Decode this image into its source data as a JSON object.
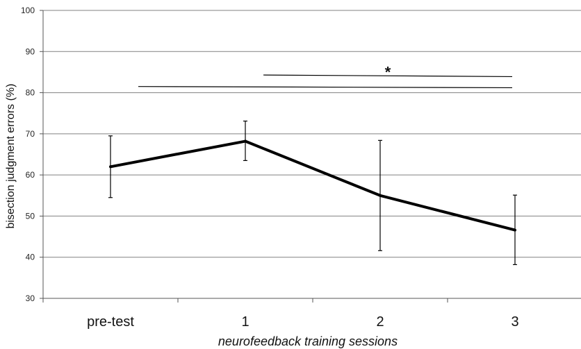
{
  "chart_data": {
    "type": "line",
    "categories": [
      "pre-test",
      "1",
      "2",
      "3"
    ],
    "series": [
      {
        "values": [
          62,
          68.2,
          55,
          46.6
        ],
        "error_low": [
          54.5,
          63.5,
          41.6,
          38.2
        ],
        "error_high": [
          69.5,
          73.1,
          68.4,
          55.1
        ]
      }
    ],
    "xlabel": "neurofeedback training sessions",
    "ylabel": "bisection judgment errors (%)",
    "ylim": [
      30,
      100
    ],
    "yticks": [
      30,
      40,
      50,
      60,
      70,
      80,
      90,
      100
    ],
    "grid": true,
    "significance": [
      {
        "from": "1",
        "to": "3",
        "y_start": 84.3,
        "y_end": 83.9,
        "label": "*"
      },
      {
        "from": "pre-test",
        "to": "3",
        "y_start": 81.5,
        "y_end": 81.2,
        "label": ""
      }
    ],
    "line_color": "#000000",
    "grid_color": "#808080"
  }
}
